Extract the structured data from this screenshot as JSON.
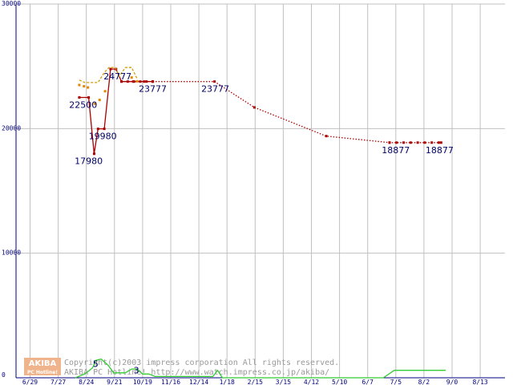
{
  "chart_data": {
    "type": "line",
    "ylim": [
      0,
      30000
    ],
    "y_ticks": [
      {
        "value": 30000,
        "label": "30000"
      },
      {
        "value": 20000,
        "label": "20000"
      },
      {
        "value": 10000,
        "label": "10000"
      },
      {
        "value": 0,
        "label": "0"
      }
    ],
    "x_ticks": [
      "6/29",
      "7/27",
      "8/24",
      "9/21",
      "10/19",
      "11/16",
      "12/14",
      "1/18",
      "2/15",
      "3/15",
      "4/12",
      "5/10",
      "6/7",
      "7/5",
      "8/2",
      "9/0",
      "8/13"
    ],
    "grid": true,
    "series": [
      {
        "color": "#aa0000",
        "style": "solid",
        "points": [
          [
            4.15,
            22500
          ],
          [
            4.75,
            22500
          ],
          [
            5.1,
            17980
          ],
          [
            5.35,
            19980
          ],
          [
            5.75,
            19980
          ],
          [
            6.15,
            24777
          ],
          [
            6.5,
            24777
          ],
          [
            6.85,
            23777
          ],
          [
            7.6,
            23777
          ],
          [
            8.3,
            23777
          ],
          [
            8.85,
            23777
          ]
        ]
      },
      {
        "color": "#aa0000",
        "style": "dotted",
        "points": [
          [
            8.85,
            23777
          ],
          [
            12.8,
            23777
          ],
          [
            15.35,
            21700
          ],
          [
            19.95,
            19400
          ],
          [
            24.0,
            18877
          ],
          [
            27.3,
            18877
          ]
        ]
      },
      {
        "color": "#d49a00",
        "style": "dashed",
        "points": [
          [
            4.15,
            23900
          ],
          [
            4.5,
            23700
          ],
          [
            4.95,
            23700
          ],
          [
            5.35,
            23700
          ],
          [
            5.75,
            24500
          ],
          [
            6.05,
            24900
          ],
          [
            6.45,
            24900
          ],
          [
            6.7,
            24200
          ],
          [
            7.1,
            24900
          ],
          [
            7.5,
            24900
          ],
          [
            7.85,
            24000
          ]
        ]
      },
      {
        "color": "#e08800",
        "style": "markers",
        "points": [
          [
            4.15,
            23500
          ],
          [
            4.45,
            23400
          ],
          [
            4.7,
            23300
          ],
          [
            5.15,
            22000
          ],
          [
            5.45,
            22300
          ],
          [
            5.8,
            23000
          ],
          [
            7.5,
            24100
          ],
          [
            7.85,
            23800
          ]
        ]
      },
      {
        "color": "#33cc33",
        "style": "solid",
        "points": [
          [
            3.9,
            0
          ],
          [
            4.5,
            300
          ],
          [
            5.0,
            800
          ],
          [
            5.2,
            1400
          ],
          [
            5.55,
            1500
          ],
          [
            6.0,
            1000
          ],
          [
            6.35,
            400
          ],
          [
            7.1,
            400
          ],
          [
            7.5,
            700
          ],
          [
            7.85,
            700
          ],
          [
            8.2,
            300
          ],
          [
            8.6,
            300
          ],
          [
            9.0,
            100
          ],
          [
            12.7,
            100
          ],
          [
            13.0,
            600
          ],
          [
            13.3,
            0
          ],
          [
            23.6,
            0
          ],
          [
            24.3,
            600
          ],
          [
            27.6,
            600
          ]
        ]
      }
    ],
    "annotations": [
      {
        "x": 4.4,
        "y": 22500,
        "text": "22500",
        "pos": "below"
      },
      {
        "x": 4.75,
        "y": 17980,
        "text": "17980",
        "pos": "below"
      },
      {
        "x": 5.65,
        "y": 19980,
        "text": "19980",
        "pos": "below"
      },
      {
        "x": 6.6,
        "y": 24777,
        "text": "24777",
        "pos": "below"
      },
      {
        "x": 8.85,
        "y": 23777,
        "text": "23777",
        "pos": "below"
      },
      {
        "x": 12.85,
        "y": 23777,
        "text": "23777",
        "pos": "below"
      },
      {
        "x": 24.4,
        "y": 18877,
        "text": "18877",
        "pos": "below"
      },
      {
        "x": 27.2,
        "y": 18877,
        "text": "18877",
        "pos": "below"
      },
      {
        "x": 5.2,
        "y": 600,
        "text": "5",
        "pos": "above"
      },
      {
        "x": 7.8,
        "y": 100,
        "text": "3",
        "pos": "above"
      }
    ]
  },
  "watermark": {
    "logo_top": "AKIBA",
    "logo_bottom": "PC Hotline!",
    "line1": "Copyright(c)2003 impress corporation All rights reserved.",
    "line2": "AKIBA PC Hotline! http://www.watch.impress.co.jp/akiba/"
  },
  "colors": {
    "grid": "#c0c0c0",
    "axis": "#000080",
    "logo_bg": "#f0b48c"
  }
}
